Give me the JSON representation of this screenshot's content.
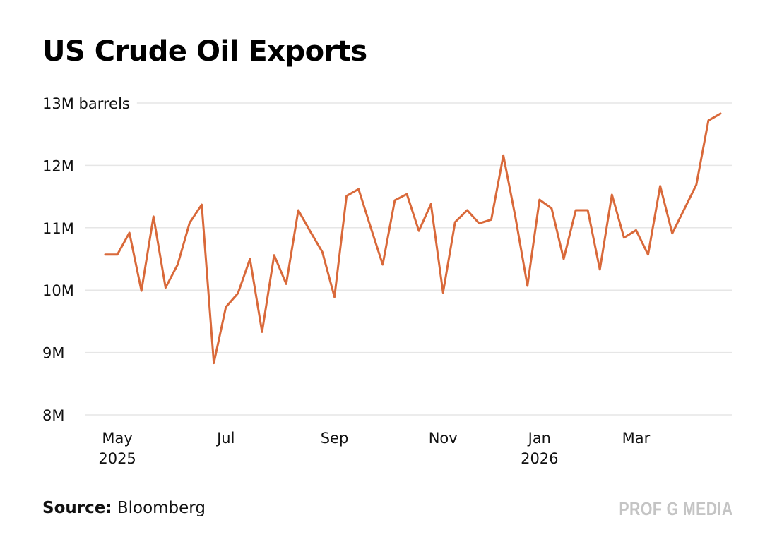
{
  "chart_data": {
    "type": "line",
    "title": "US Crude Oil Exports",
    "categories": [
      null,
      "May\n2025",
      null,
      null,
      null,
      null,
      null,
      null,
      null,
      null,
      "Jul",
      null,
      null,
      null,
      null,
      null,
      null,
      null,
      null,
      "Sep",
      null,
      null,
      null,
      null,
      null,
      null,
      null,
      null,
      "Nov",
      null,
      null,
      null,
      null,
      null,
      null,
      null,
      "Jan\n2026",
      null,
      null,
      null,
      null,
      null,
      null,
      null,
      "Mar",
      null,
      null,
      null,
      null,
      null,
      null,
      null
    ],
    "values": [
      10.57,
      10.57,
      10.92,
      9.99,
      11.18,
      10.04,
      10.41,
      11.08,
      11.37,
      8.83,
      9.73,
      9.95,
      10.5,
      9.33,
      10.56,
      10.1,
      11.28,
      10.94,
      10.61,
      9.89,
      11.51,
      11.62,
      11.01,
      10.41,
      11.44,
      11.54,
      10.95,
      11.38,
      9.96,
      11.09,
      11.28,
      11.07,
      11.13,
      12.16,
      11.17,
      10.07,
      11.45,
      11.31,
      10.5,
      11.28,
      11.28,
      10.33,
      11.53,
      10.84,
      10.96,
      10.57,
      11.67,
      10.91,
      11.3,
      11.69,
      12.72,
      12.83
    ],
    "color": "#d9693a",
    "ylim": [
      8,
      13
    ],
    "yticks": [
      {
        "value": 8,
        "label": "8M"
      },
      {
        "value": 9,
        "label": "9M"
      },
      {
        "value": 10,
        "label": "10M"
      },
      {
        "value": 11,
        "label": "11M"
      },
      {
        "value": 12,
        "label": "12M"
      },
      {
        "value": 13,
        "label": "13M barrels"
      }
    ],
    "grid": true,
    "source_label": "Source:",
    "source": "Bloomberg",
    "brand": "PROF G MEDIA"
  }
}
